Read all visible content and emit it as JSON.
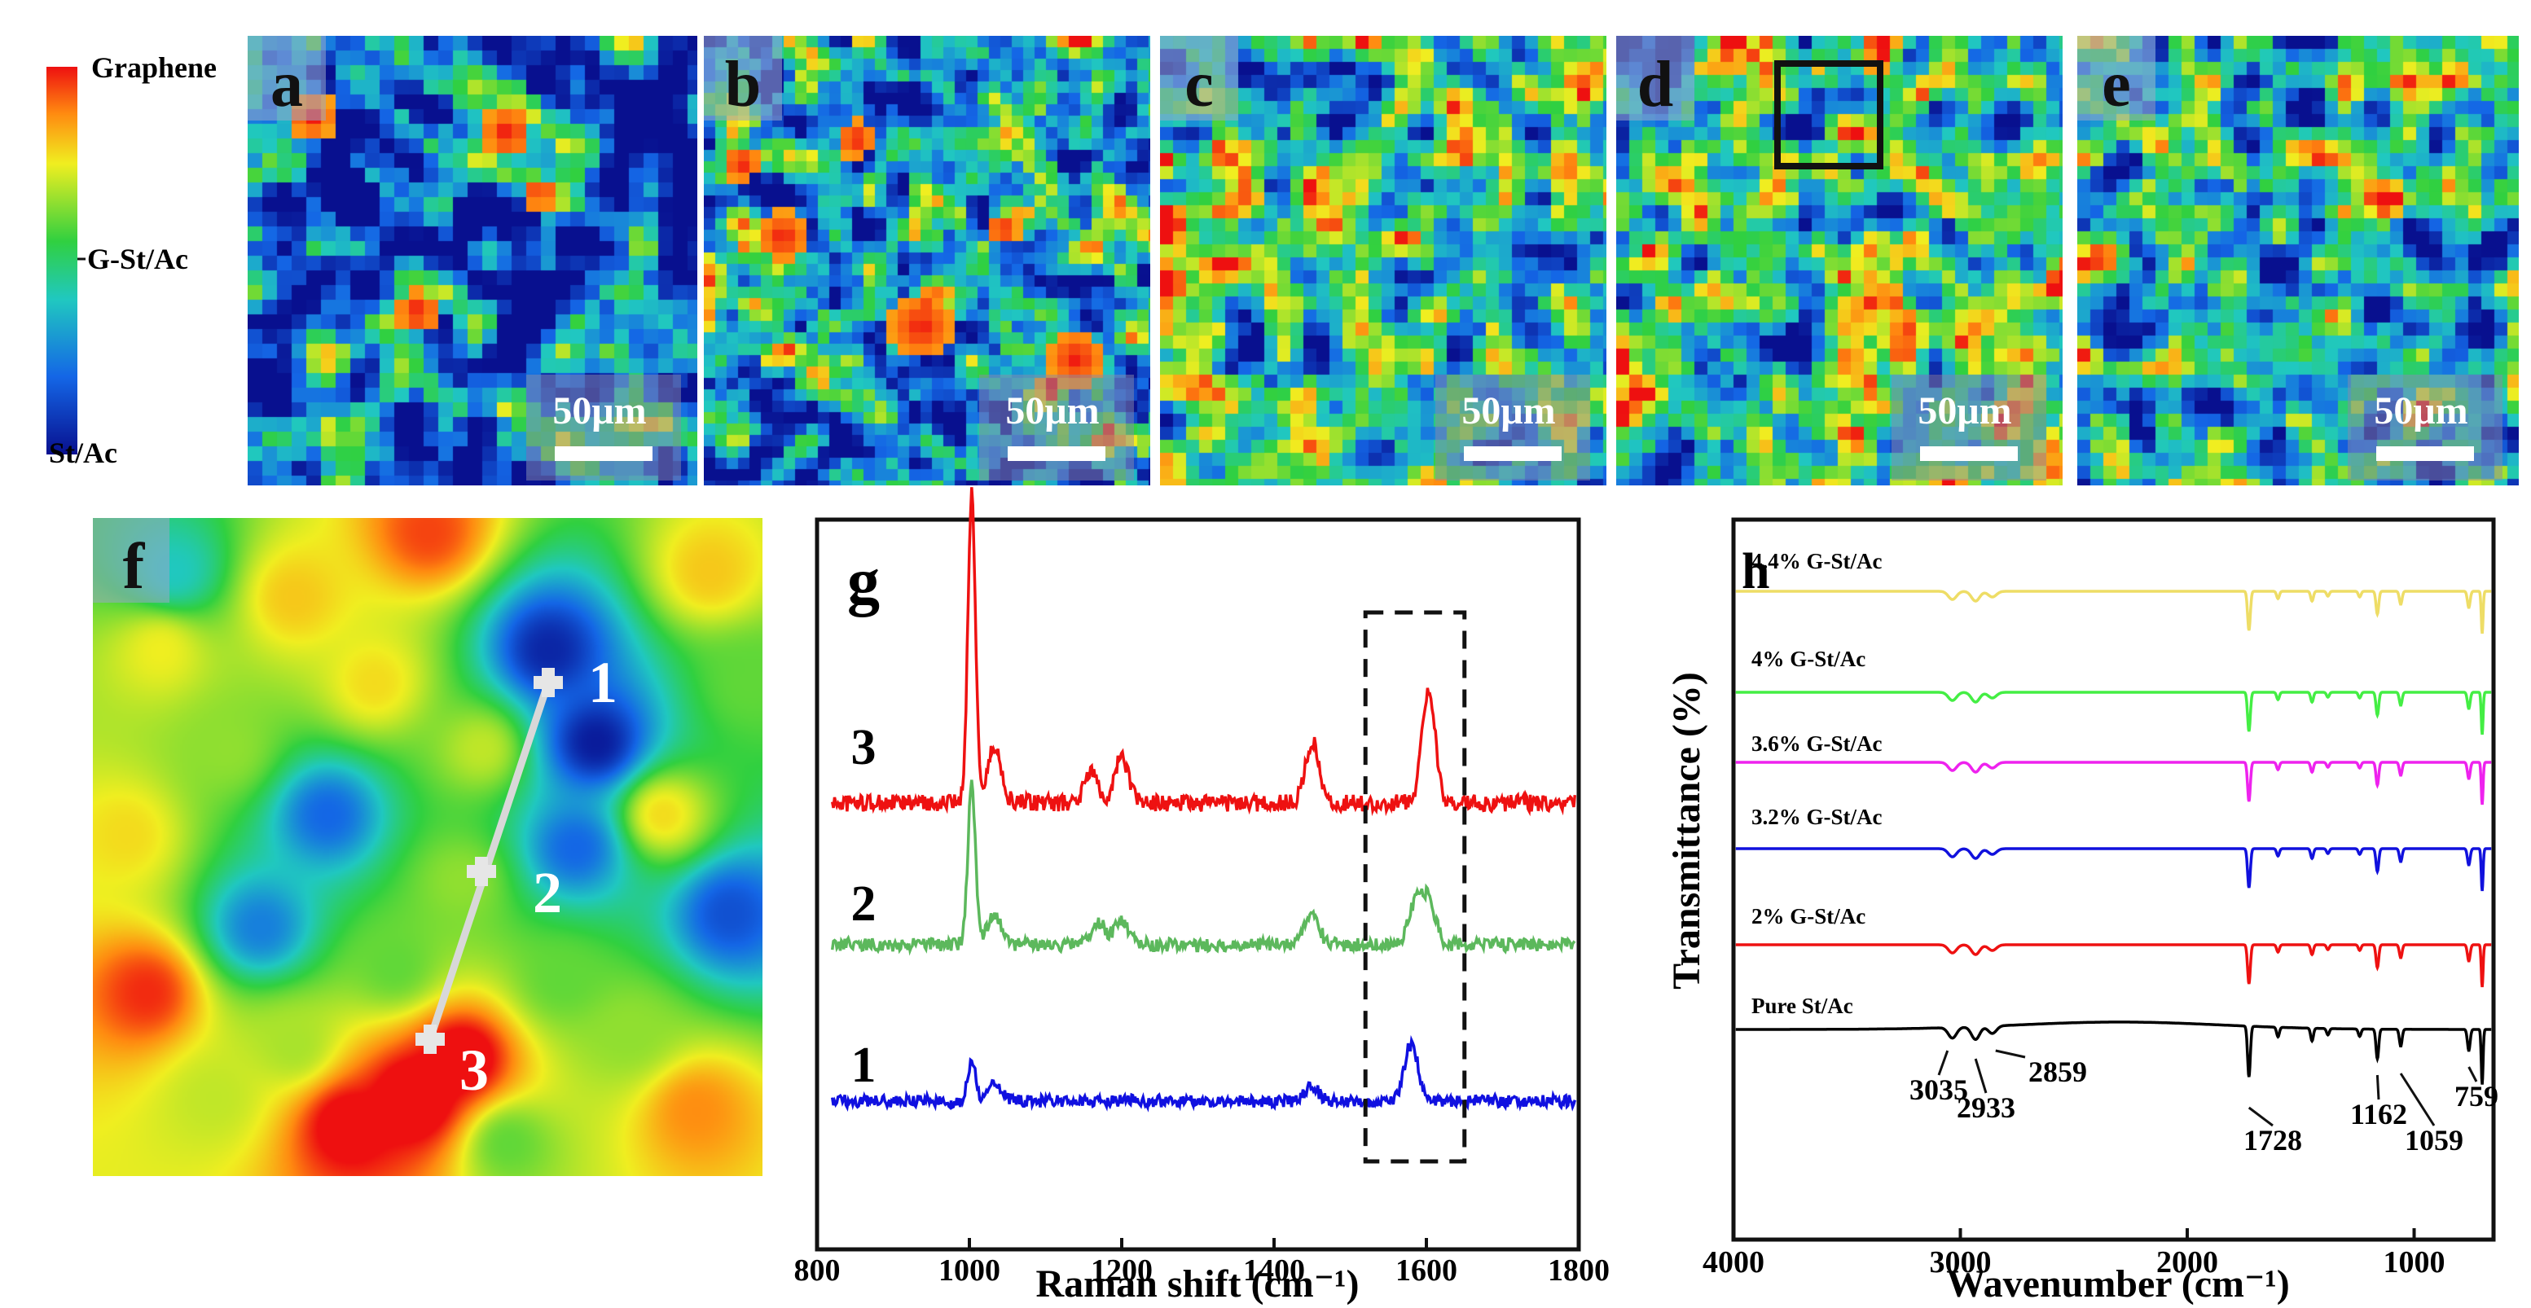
{
  "colorbar": {
    "top_label": "Graphene",
    "mid_label": "G-St/Ac",
    "bottom_label": "St/Ac"
  },
  "panels": {
    "a": {
      "label": "a",
      "scale": "50μm"
    },
    "b": {
      "label": "b",
      "scale": "50μm"
    },
    "c": {
      "label": "c",
      "scale": "50μm"
    },
    "d": {
      "label": "d",
      "scale": "50μm"
    },
    "e": {
      "label": "e",
      "scale": "50μm"
    },
    "f": {
      "label": "f",
      "points": [
        "1",
        "2",
        "3"
      ]
    },
    "g": {
      "label": "g"
    },
    "h": {
      "label": "h"
    }
  },
  "colors": {
    "map_low": "#0a1a9c",
    "map_mid": "#2fd05a",
    "map_high": "#ff1a0a",
    "spec1": "#1010e0",
    "spec2": "#5cb85c",
    "spec3": "#ee1111"
  },
  "chart_data": [
    {
      "panel": "g",
      "type": "line",
      "xlabel": "Raman shift (cm⁻¹)",
      "ylabel": "",
      "xlim": [
        800,
        1800
      ],
      "x_ticks": [
        "800",
        "1000",
        "1200",
        "1400",
        "1600",
        "1800"
      ],
      "grid": false,
      "highlight_box_x": [
        1520,
        1650
      ],
      "series": [
        {
          "name": "3",
          "color": "#ee1111",
          "peaks": [
            [
              1003,
              10.0
            ],
            [
              1033,
              1.8
            ],
            [
              1160,
              1.0
            ],
            [
              1200,
              1.5
            ],
            [
              1450,
              2.0
            ],
            [
              1603,
              3.5
            ]
          ]
        },
        {
          "name": "2",
          "color": "#5cb85c",
          "peaks": [
            [
              1003,
              6.5
            ],
            [
              1033,
              1.3
            ],
            [
              1170,
              0.9
            ],
            [
              1200,
              1.0
            ],
            [
              1450,
              1.3
            ],
            [
              1585,
              1.6
            ],
            [
              1603,
              1.8
            ]
          ]
        },
        {
          "name": "1",
          "color": "#1010e0",
          "peaks": [
            [
              1003,
              1.8
            ],
            [
              1033,
              0.9
            ],
            [
              1450,
              0.6
            ],
            [
              1580,
              2.5
            ]
          ]
        }
      ]
    },
    {
      "panel": "h",
      "type": "line",
      "xlabel": "Wavenumber (cm⁻¹)",
      "ylabel": "Transmittance (%)",
      "xlim": [
        4000,
        650
      ],
      "x_ticks": [
        "4000",
        "3000",
        "2000",
        "1000"
      ],
      "grid": false,
      "series": [
        {
          "name": "4.4% G-St/Ac",
          "color": "#eedd66"
        },
        {
          "name": "4% G-St/Ac",
          "color": "#44ee44"
        },
        {
          "name": "3.6% G-St/Ac",
          "color": "#ee22ee"
        },
        {
          "name": "3.2% G-St/Ac",
          "color": "#1111dd"
        },
        {
          "name": "2% G-St/Ac",
          "color": "#ee1111"
        },
        {
          "name": "Pure St/Ac",
          "color": "#000000"
        }
      ],
      "bands": [
        [
          3035,
          0.5
        ],
        [
          2933,
          0.6
        ],
        [
          2859,
          0.35
        ],
        [
          1728,
          2.4
        ],
        [
          1600,
          0.45
        ],
        [
          1450,
          0.6
        ],
        [
          1380,
          0.3
        ],
        [
          1240,
          0.35
        ],
        [
          1162,
          1.4
        ],
        [
          1059,
          0.8
        ],
        [
          759,
          1.0
        ],
        [
          700,
          2.6
        ]
      ],
      "annotations": [
        "3035",
        "2933",
        "2859",
        "1728",
        "1162",
        "1059",
        "759"
      ]
    }
  ]
}
